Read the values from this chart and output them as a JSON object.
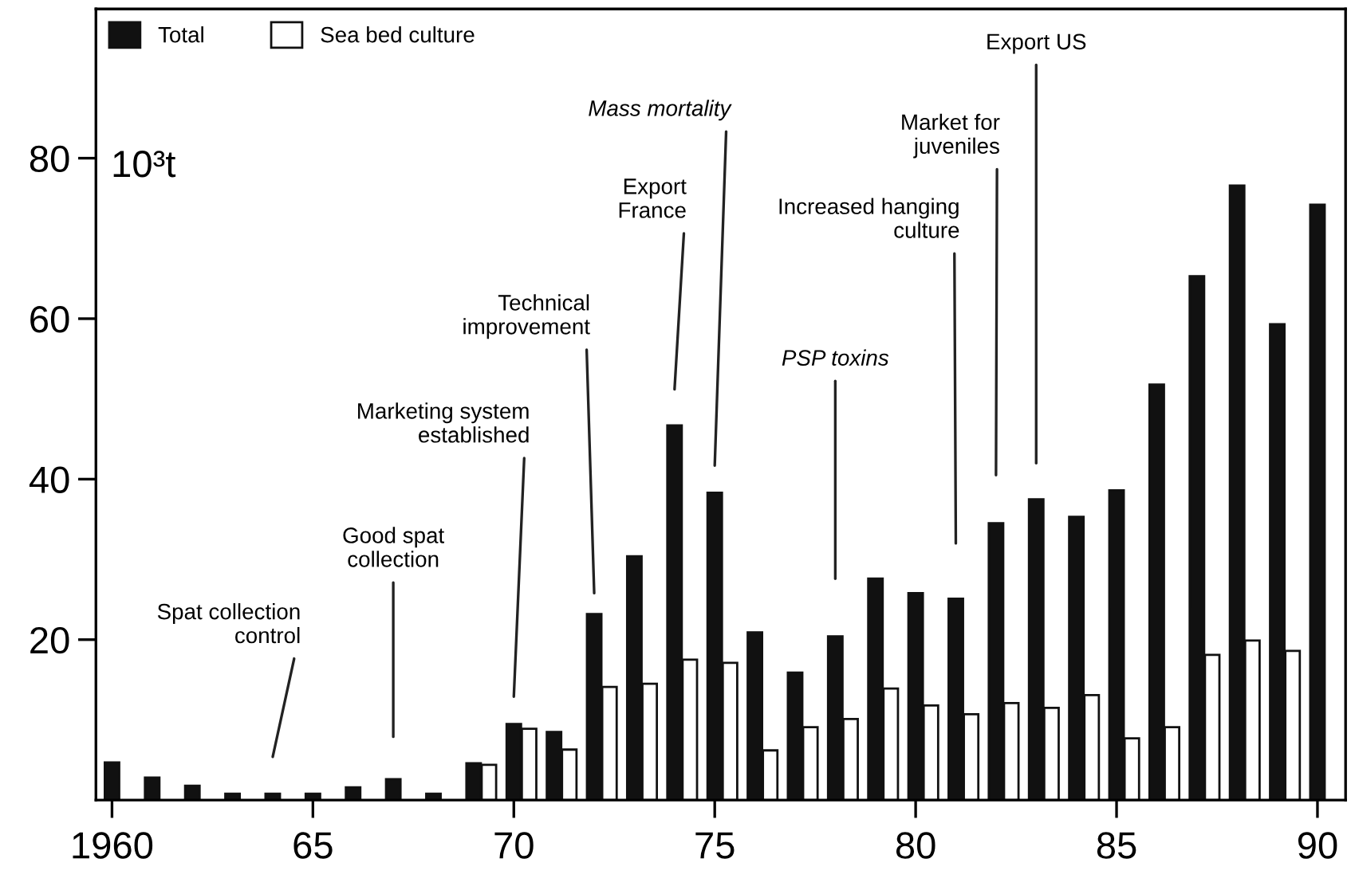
{
  "chart_data": {
    "type": "bar",
    "ylabel": "10³t",
    "x": [
      1960,
      1961,
      1962,
      1963,
      1964,
      1965,
      1966,
      1967,
      1968,
      1969,
      1970,
      1971,
      1972,
      1973,
      1974,
      1975,
      1976,
      1977,
      1978,
      1979,
      1980,
      1981,
      1982,
      1983,
      1984,
      1985,
      1986,
      1987,
      1988,
      1989,
      1990
    ],
    "series": [
      {
        "name": "Total",
        "color": "#111111",
        "values": [
          4.7,
          2.8,
          1.8,
          0.8,
          0.8,
          0.8,
          1.6,
          2.6,
          0.8,
          4.6,
          9.5,
          8.5,
          23.2,
          30.4,
          46.7,
          38.3,
          20.9,
          15.9,
          20.4,
          27.6,
          25.8,
          25.1,
          34.5,
          37.5,
          35.3,
          38.6,
          51.8,
          65.3,
          76.6,
          59.3,
          74.2
        ]
      },
      {
        "name": "Sea bed culture",
        "color": "#ffffff",
        "values": [
          null,
          null,
          null,
          null,
          null,
          null,
          null,
          null,
          null,
          4.4,
          8.9,
          6.3,
          14.1,
          14.5,
          17.5,
          17.1,
          6.2,
          9.1,
          10.1,
          13.9,
          11.8,
          10.7,
          12.1,
          11.5,
          13.1,
          7.7,
          9.1,
          18.1,
          19.9,
          18.6,
          null
        ]
      }
    ],
    "xlim": [
      1959.6,
      1990.7
    ],
    "xticks": [
      1960,
      {
        "value": 1965,
        "label": "65"
      },
      {
        "value": 1970,
        "label": "70"
      },
      {
        "value": 1975,
        "label": "75"
      },
      {
        "value": 1980,
        "label": "80"
      },
      {
        "value": 1985,
        "label": "85"
      },
      {
        "value": 1990,
        "label": "90"
      }
    ],
    "ylim": [
      0,
      98.6
    ],
    "yticks": [
      20,
      40,
      60,
      80
    ],
    "legend": "top left",
    "grid": false,
    "annotations": [
      "Spat collection control",
      "Good spat collection",
      "Marketing system established",
      "Technical improvement",
      "Mass mortality",
      "Export France",
      "PSP toxins",
      "Increased hanging culture",
      "Market for juveniles",
      "Export US"
    ]
  }
}
